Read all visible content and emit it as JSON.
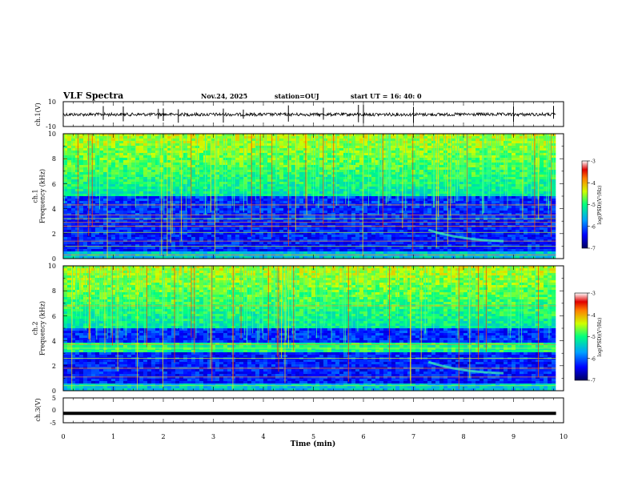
{
  "header": {
    "title": "VLF Spectra",
    "date": "Nov.24, 2025",
    "station": "station=OUJ",
    "start": "start  UT =   16: 40: 0"
  },
  "colorbar": {
    "label": "log(PSD)(V²/Hz)",
    "ticks": [
      "-3",
      "-4",
      "-5",
      "-6",
      "-7"
    ],
    "range": [
      -7,
      -3
    ]
  },
  "chart_data": [
    {
      "type": "line",
      "panel": "ch1-waveform",
      "ylabel": "ch.1(V)",
      "ylim": [
        -10,
        10
      ],
      "yticks": [
        "10",
        "-10"
      ],
      "baseline": -0.3,
      "spike_times_min": [
        0.8,
        1.2,
        1.9,
        2.0,
        2.3,
        3.2,
        3.6,
        4.5,
        5.2,
        5.9,
        6.0,
        7.0,
        9.0,
        9.8
      ]
    },
    {
      "type": "heatmap",
      "panel": "ch1-spectrogram",
      "ylabel": "ch.1\nFrequency (kHz)",
      "ylim": [
        0,
        10
      ],
      "yticks": [
        "0",
        "2",
        "4",
        "6",
        "8",
        "10"
      ],
      "xlim": [
        0,
        10
      ],
      "zlim": [
        -7,
        -3
      ],
      "bands_khz": [
        0.3,
        1.0,
        1.4,
        2.1,
        2.6,
        2.9,
        3.2,
        3.5,
        4.3
      ],
      "features": "broadband sferics (vertical lines) dominating 5-10 kHz, quiet band 3-5 kHz, weak emission near 1.2-2.5 kHz around 7.3-8.5 min"
    },
    {
      "type": "heatmap",
      "panel": "ch2-spectrogram",
      "ylabel": "ch.2\nFrequency (kHz)",
      "ylim": [
        0,
        10
      ],
      "yticks": [
        "0",
        "2",
        "4",
        "6",
        "8",
        "10"
      ],
      "xlim": [
        0,
        10
      ],
      "zlim": [
        -7,
        -3
      ],
      "bands_khz": [
        0.4,
        1.1,
        1.8,
        2.6,
        3.4,
        3.7,
        6.8
      ],
      "features": "broadband sferics, strong band near 3.4-3.8 kHz, weak emission near 1.5-2.5 kHz around 7.3-8.5 min"
    },
    {
      "type": "line",
      "panel": "ch3-waveform",
      "ylabel": "ch.3(V)",
      "ylim": [
        -5,
        5
      ],
      "yticks": [
        "5",
        "0",
        "-5"
      ],
      "baseline": -1.2
    }
  ],
  "xaxis": {
    "label": "Time (min)",
    "ticks": [
      "0",
      "1",
      "2",
      "3",
      "4",
      "5",
      "6",
      "7",
      "8",
      "9",
      "10"
    ],
    "xlim": [
      0,
      10
    ],
    "data_end_min": 9.85
  }
}
